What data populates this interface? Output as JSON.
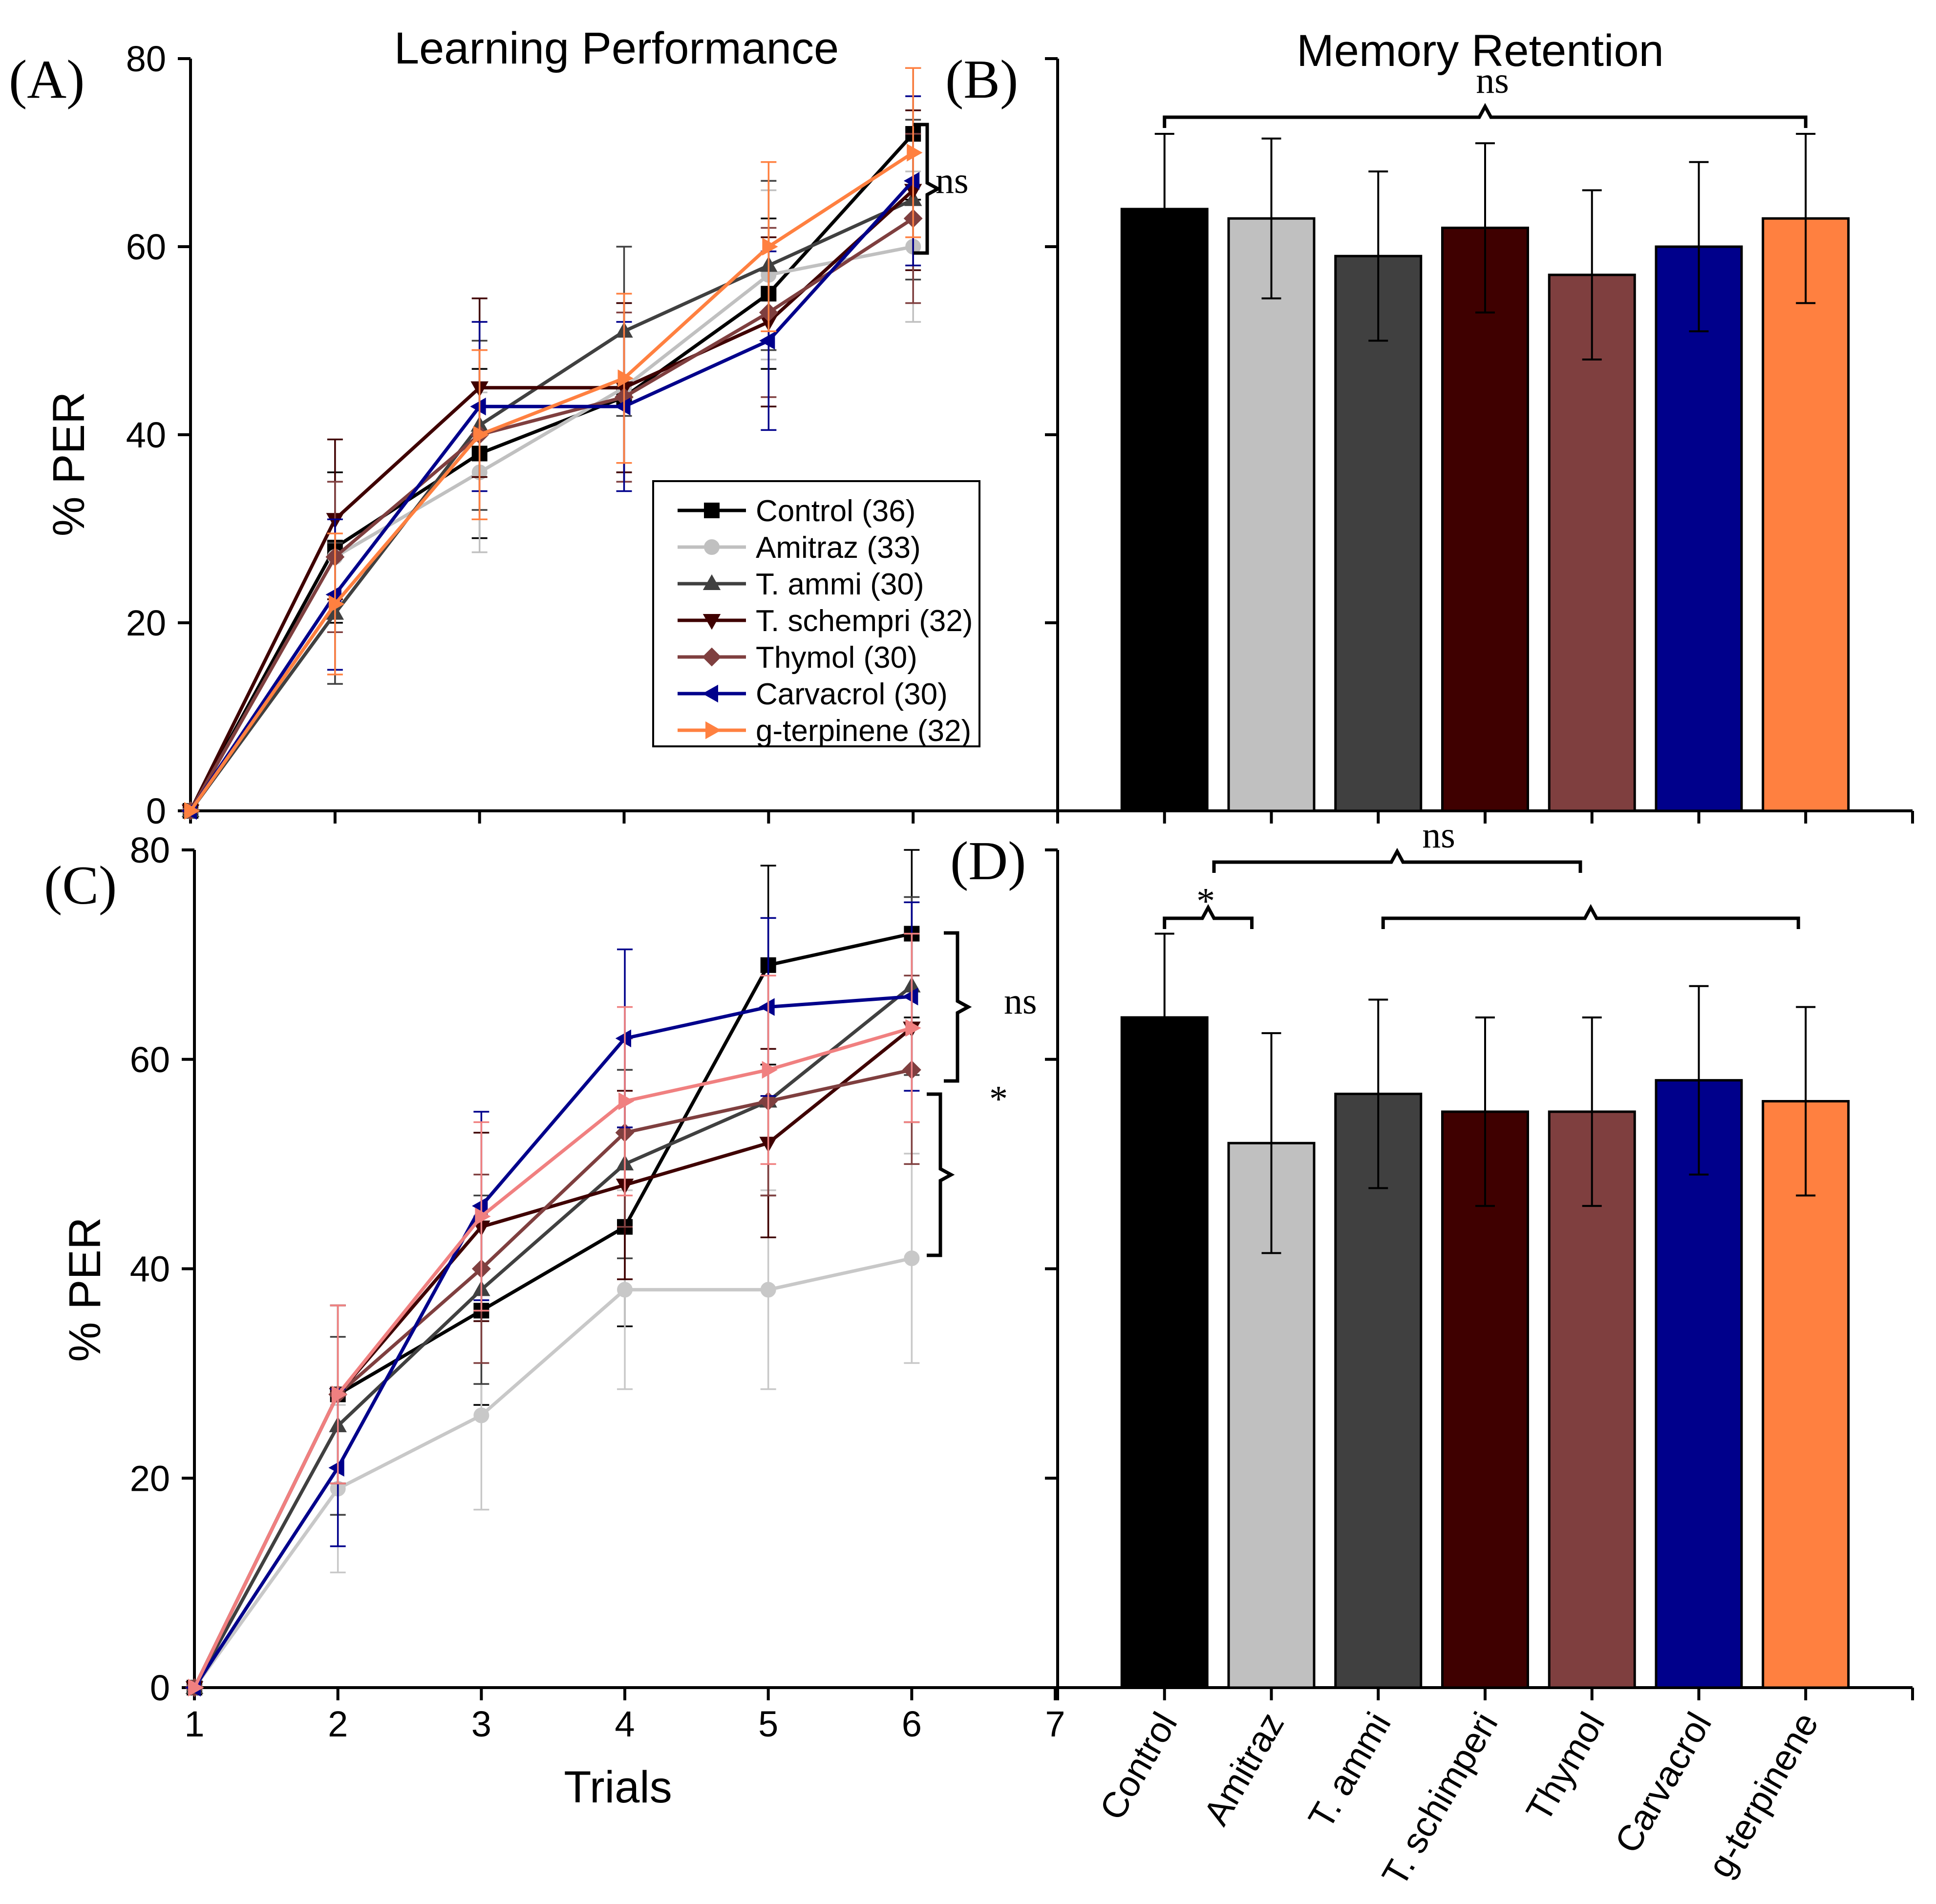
{
  "chart_data": [
    {
      "panel": "(A)",
      "type": "line",
      "title": "Learning Performance",
      "xlabel": "",
      "ylabel": "% PER",
      "xlim": [
        1,
        7
      ],
      "ylim": [
        0,
        80
      ],
      "yticks": [
        0,
        20,
        40,
        60,
        80
      ],
      "x": [
        1,
        2,
        3,
        4,
        5,
        6
      ],
      "legend": "inset-center",
      "annotation": "ns",
      "series": [
        {
          "name": "Control (36)",
          "color": "#000000",
          "marker": "square",
          "values": [
            0,
            28,
            38,
            44,
            55,
            72
          ],
          "errors": [
            0,
            8,
            9,
            9,
            8,
            7
          ]
        },
        {
          "name": "Amitraz (33)",
          "color": "#c0c0c0",
          "marker": "circle",
          "values": [
            0,
            27,
            36,
            45,
            57,
            60
          ],
          "errors": [
            0,
            8,
            8.5,
            9,
            9,
            8
          ]
        },
        {
          "name": "T. ammi (30)",
          "color": "#404040",
          "marker": "triangle-up",
          "values": [
            0,
            21,
            41,
            51,
            58,
            65
          ],
          "errors": [
            0,
            7.5,
            9,
            9,
            9,
            8.5
          ]
        },
        {
          "name": "T. schempri (32)",
          "color": "#3f0000",
          "marker": "triangle-down",
          "values": [
            0,
            31,
            45,
            45,
            52,
            66
          ],
          "errors": [
            0,
            8.5,
            9.5,
            9,
            9,
            8.5
          ]
        },
        {
          "name": "Thymol (30)",
          "color": "#7f3f3f",
          "marker": "diamond",
          "values": [
            0,
            27,
            40,
            44,
            53,
            63
          ],
          "errors": [
            0,
            8,
            9,
            9,
            9,
            9
          ]
        },
        {
          "name": "Carvacrol (30)",
          "color": "#00008b",
          "marker": "triangle-left",
          "values": [
            0,
            23,
            43,
            43,
            50,
            67
          ],
          "errors": [
            0,
            8,
            9,
            9,
            9.5,
            9
          ]
        },
        {
          "name": "g-terpinene (32)",
          "color": "#ff8040",
          "marker": "triangle-right",
          "values": [
            0,
            22,
            40,
            46,
            60,
            70
          ],
          "errors": [
            0,
            7.5,
            9,
            9,
            9,
            9
          ]
        }
      ]
    },
    {
      "panel": "(B)",
      "type": "bar",
      "title": "Memory Retention",
      "ylim": [
        0,
        80
      ],
      "categories": [
        "Control",
        "Amitraz",
        "T. ammi",
        "T. schimperi",
        "Thymol",
        "Carvacrol",
        "g-terpinene"
      ],
      "values": [
        64,
        63,
        59,
        62,
        57,
        60,
        63
      ],
      "errors": [
        8,
        8.5,
        9,
        9,
        9,
        9,
        9
      ],
      "colors": [
        "#000000",
        "#c0c0c0",
        "#404040",
        "#3f0000",
        "#7f3f3f",
        "#00008b",
        "#ff8040"
      ],
      "annotation": "ns"
    },
    {
      "panel": "(C)",
      "type": "line",
      "xlabel": "Trials",
      "ylabel": "% PER",
      "xlim": [
        1,
        7
      ],
      "ylim": [
        0,
        80
      ],
      "xticks": [
        1,
        2,
        3,
        4,
        5,
        6,
        7
      ],
      "yticks": [
        0,
        20,
        40,
        60,
        80
      ],
      "x": [
        1,
        2,
        3,
        4,
        5,
        6
      ],
      "annotations": [
        "ns",
        "*"
      ],
      "series": [
        {
          "name": "Control",
          "color": "#000000",
          "marker": "square",
          "values": [
            0,
            28,
            36,
            44,
            69,
            72
          ],
          "errors": [
            0,
            8.5,
            9,
            9.5,
            9.5,
            8
          ]
        },
        {
          "name": "Amitraz",
          "color": "#c8c8c8",
          "marker": "circle",
          "values": [
            0,
            19,
            26,
            38,
            38,
            41
          ],
          "errors": [
            0,
            8,
            9,
            9.5,
            9.5,
            10
          ]
        },
        {
          "name": "T. ammi",
          "color": "#404040",
          "marker": "triangle-up",
          "values": [
            0,
            25,
            38,
            50,
            56,
            67
          ],
          "errors": [
            0,
            8.5,
            9,
            9,
            9,
            8.5
          ]
        },
        {
          "name": "T. schimperi",
          "color": "#3f0000",
          "marker": "triangle-down",
          "values": [
            0,
            28,
            44,
            48,
            52,
            63
          ],
          "errors": [
            0,
            8.5,
            9,
            9,
            9,
            9
          ]
        },
        {
          "name": "Thymol",
          "color": "#7f3f3f",
          "marker": "diamond",
          "values": [
            0,
            28,
            40,
            53,
            56,
            59
          ],
          "errors": [
            0,
            8.5,
            9,
            9,
            9,
            9
          ]
        },
        {
          "name": "Carvacrol",
          "color": "#00008b",
          "marker": "triangle-left",
          "values": [
            0,
            21,
            46,
            62,
            65,
            66
          ],
          "errors": [
            0,
            7.5,
            9,
            8.5,
            8.5,
            9
          ]
        },
        {
          "name": "g-terpinene",
          "color": "#f08080",
          "marker": "triangle-right",
          "values": [
            0,
            28,
            45,
            56,
            59,
            63
          ],
          "errors": [
            0,
            8.5,
            9,
            9,
            9,
            9
          ]
        }
      ]
    },
    {
      "panel": "(D)",
      "type": "bar",
      "ylim": [
        0,
        80
      ],
      "categories": [
        "Control",
        "Amitraz",
        "T. ammi",
        "T. schimperi",
        "Thymol",
        "Carvacrol",
        "g-terpinene"
      ],
      "values": [
        64,
        52,
        56.7,
        55,
        55,
        58,
        56
      ],
      "errors": [
        8,
        10.5,
        9,
        9,
        9,
        9,
        9
      ],
      "colors": [
        "#000000",
        "#c0c0c0",
        "#404040",
        "#3f0000",
        "#7f3f3f",
        "#00008b",
        "#ff8040"
      ],
      "annotations": [
        "*",
        "ns"
      ]
    }
  ]
}
